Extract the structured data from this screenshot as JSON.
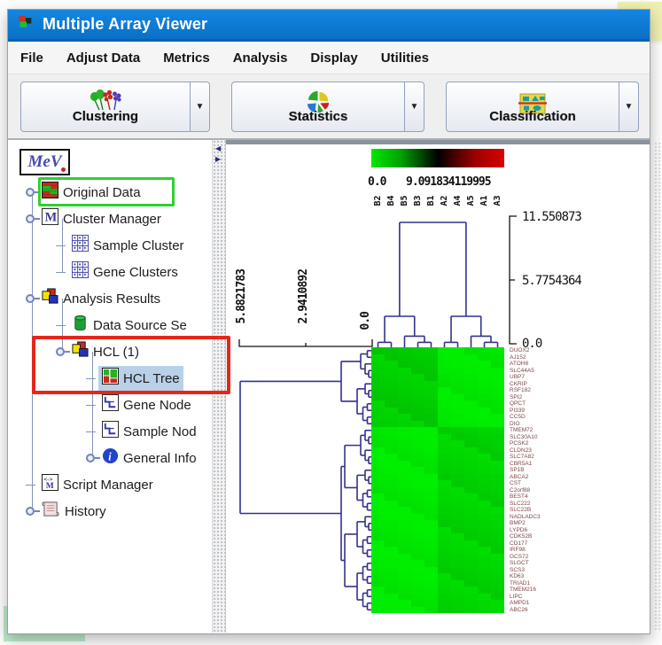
{
  "window": {
    "title": "Multiple Array Viewer",
    "icon": "mev-app-icon"
  },
  "menu": {
    "items": [
      "File",
      "Adjust Data",
      "Metrics",
      "Analysis",
      "Display",
      "Utilities"
    ]
  },
  "toolbar": {
    "buttons": [
      {
        "label": "Clustering",
        "icon": "clustering-icon"
      },
      {
        "label": "Statistics",
        "icon": "statistics-icon"
      },
      {
        "label": "Classification",
        "icon": "classification-icon"
      }
    ]
  },
  "sidebar": {
    "logo_text": "MeV",
    "items": [
      {
        "label": "Original Data",
        "icon": "original-data-icon",
        "level": 1,
        "knob": true,
        "highlight": "green-box"
      },
      {
        "label": "Cluster Manager",
        "icon": "cluster-manager-icon",
        "level": 1,
        "knob": true
      },
      {
        "label": "Sample Cluster",
        "icon": "cluster-grid-icon",
        "level": 2
      },
      {
        "label": "Gene Clusters",
        "icon": "cluster-grid-icon",
        "level": 2
      },
      {
        "label": "Analysis Results",
        "icon": "analysis-results-icon",
        "level": 1,
        "knob": true
      },
      {
        "label": "Data Source Se",
        "icon": "data-source-icon",
        "level": 2
      },
      {
        "label": "HCL (1)",
        "icon": "analysis-results-icon",
        "level": 2,
        "knob": true,
        "highlight": "red-box"
      },
      {
        "label": "HCL Tree",
        "icon": "hcl-tree-icon",
        "level": 3,
        "selected": true,
        "highlight": "red-box"
      },
      {
        "label": "Gene Node",
        "icon": "node-tree-icon",
        "level": 3
      },
      {
        "label": "Sample Nod",
        "icon": "node-tree-icon",
        "level": 3
      },
      {
        "label": "General Info",
        "icon": "info-icon",
        "level": 3,
        "knob": true
      },
      {
        "label": "Script Manager",
        "icon": "script-manager-icon",
        "level": 1
      },
      {
        "label": "History",
        "icon": "history-icon",
        "level": 1,
        "knob": true
      }
    ]
  },
  "chart_data": {
    "type": "heatmap",
    "title": "HCL Tree",
    "color_scale": {
      "colors": [
        "#00ee00",
        "#000000",
        "#ee0000"
      ],
      "labels": [
        "0.0",
        "9.091834119995"
      ]
    },
    "columns": [
      "B2",
      "B4",
      "B5",
      "B3",
      "B1",
      "A2",
      "A4",
      "A5",
      "A1",
      "A3"
    ],
    "rows": [
      "DUOX2",
      "AJ152",
      "ATOH8",
      "SLC44A5",
      "UBP7",
      "CKRIP",
      "RSF182",
      "SPI2",
      "QPCT",
      "PI339",
      "CC5D",
      "DIO",
      "TMEM72",
      "SLC30A10",
      "PCSK2",
      "CLDN23",
      "SLC7A82",
      "CBR5A1",
      "SP1B",
      "ABCA2",
      "CST",
      "C2orf88",
      "BEST4",
      "SLC222",
      "SLC22B",
      "NADLADC3",
      "BMP2",
      "LYPD6",
      "CDK52B",
      "CD177",
      "IRF98",
      "GCS72",
      "SLGCT",
      "SCS3",
      "KD63",
      "TRIAD1",
      "TMEM216",
      "LIPC",
      "AMPD1",
      "ABC26"
    ],
    "gene_tree_scale": [
      "5.8821783",
      "2.9410892",
      "0.0"
    ],
    "sample_tree_scale": [
      "11.550873",
      "5.7754364",
      "0.0"
    ],
    "heatmap": {
      "row_split": 12,
      "col_split": 5,
      "quadrant_colors": {
        "top_left": "#00ce00",
        "top_right": "#00ea00",
        "bottom_left": "#00ea00",
        "bottom_right": "#00d400"
      }
    }
  }
}
